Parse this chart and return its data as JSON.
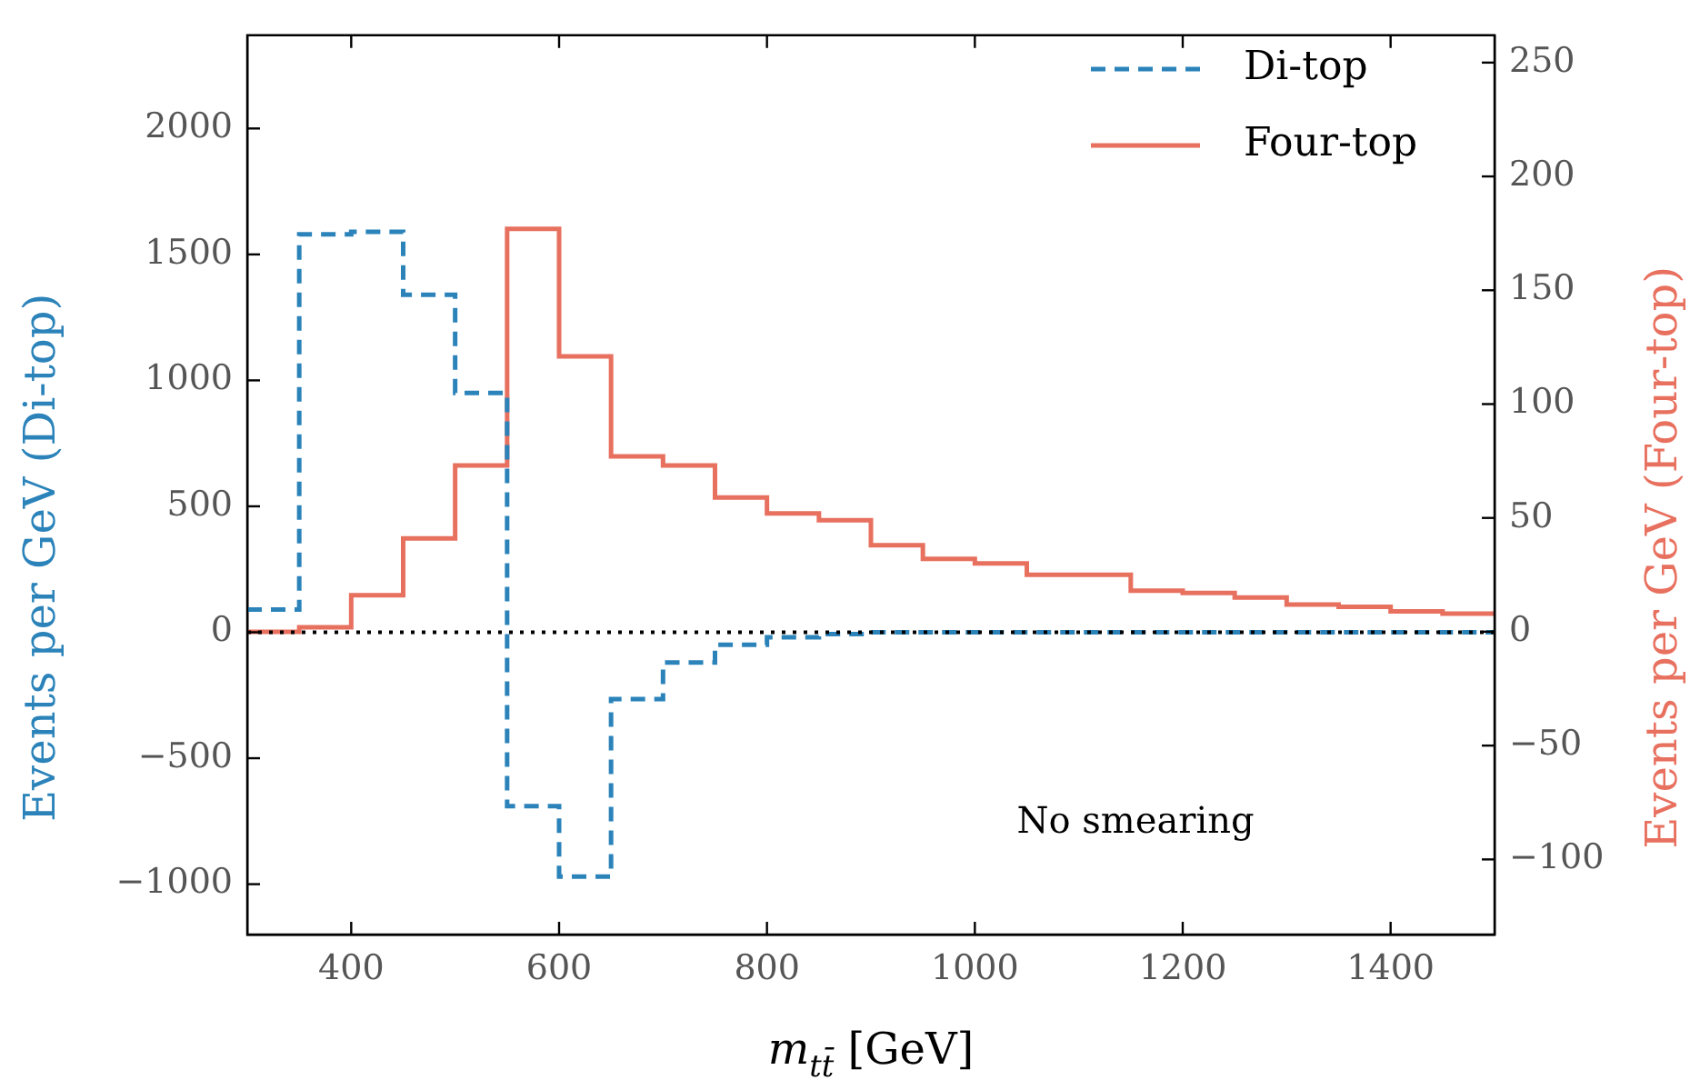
{
  "chart_data": {
    "type": "histogram",
    "xlabel": "m$_{tt̄}$ [GeV]",
    "ylabel": "Events per GeV (Di-top)",
    "y2label": "Events per GeV (Four-top)",
    "bins": [
      300,
      350,
      400,
      450,
      500,
      550,
      600,
      650,
      700,
      750,
      800,
      850,
      900,
      950,
      1000,
      1050,
      1100,
      1150,
      1200,
      1250,
      1300,
      1350,
      1400,
      1450,
      1500
    ],
    "series": [
      {
        "name": "Di-top",
        "color": "#2b83ba",
        "line_style": "dashed",
        "values": [
          90,
          1580,
          1590,
          1340,
          950,
          -690,
          -970,
          -265,
          -120,
          -50,
          -20,
          -7,
          0,
          0,
          0,
          0,
          0,
          0,
          0,
          0,
          0,
          0,
          0,
          0
        ]
      },
      {
        "name": "Four-top",
        "color": "#e8705f",
        "line_style": "solid",
        "axis": "y2",
        "values": [
          0,
          2,
          16,
          41,
          73,
          177,
          121,
          77,
          73,
          59,
          52,
          49,
          38,
          32,
          30,
          25,
          25,
          18,
          17,
          15,
          12,
          11,
          9,
          8
        ]
      }
    ],
    "xlim": [
      300,
      1500
    ],
    "xticks": [
      400,
      600,
      800,
      1000,
      1200,
      1400
    ],
    "ylim": [
      -1200,
      2370
    ],
    "yticks": [
      {
        "value": -1000,
        "label": "−1000"
      },
      {
        "value": -500,
        "label": "−500"
      },
      0,
      500,
      1000,
      1500,
      2000
    ],
    "y2lim": [
      -133,
      262
    ],
    "y2ticks": [
      {
        "value": -100,
        "label": "−100"
      },
      {
        "value": -50,
        "label": "−50"
      },
      0,
      50,
      100,
      150,
      200,
      250
    ],
    "ref_lines": [
      {
        "axis": "y",
        "value": 0,
        "color": "#000000",
        "line_style": "dotted"
      }
    ],
    "annotations": [
      "No smearing"
    ],
    "legend": "top right",
    "grid": false
  }
}
